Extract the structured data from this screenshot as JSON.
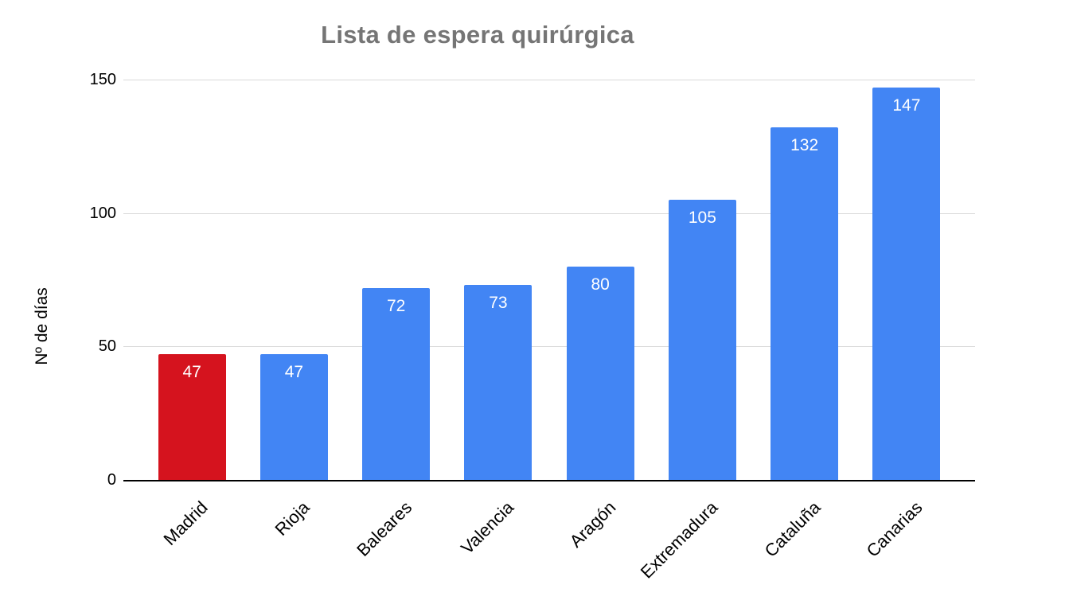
{
  "page": {
    "background": "#ffffff"
  },
  "chart_data": {
    "type": "bar",
    "title": "Lista de espera quirúrgica",
    "categories": [
      "Madrid",
      "Rioja",
      "Baleares",
      "Valencia",
      "Aragón",
      "Extremadura",
      "Cataluña",
      "Canarias"
    ],
    "values": [
      47,
      47,
      72,
      73,
      80,
      105,
      132,
      147
    ],
    "bar_colors": [
      "#d5131e",
      "#4285f4",
      "#4285f4",
      "#4285f4",
      "#4285f4",
      "#4285f4",
      "#4285f4",
      "#4285f4"
    ],
    "xlabel": "",
    "ylabel": "Nº de días",
    "ylim": [
      0,
      150
    ],
    "yticks": [
      0,
      50,
      100,
      150
    ],
    "grid": "horizontal-gridlines",
    "legend": "none",
    "value_label_position": "inside-top",
    "x_tick_rotation_deg": -45,
    "colors": {
      "default_bar": "#4285f4",
      "highlight_bar": "#d5131e",
      "grid": "#d9d9d9",
      "axis": "#000000",
      "title_text": "#757575",
      "tick_text": "#000000",
      "value_label": "#ffffff"
    }
  }
}
